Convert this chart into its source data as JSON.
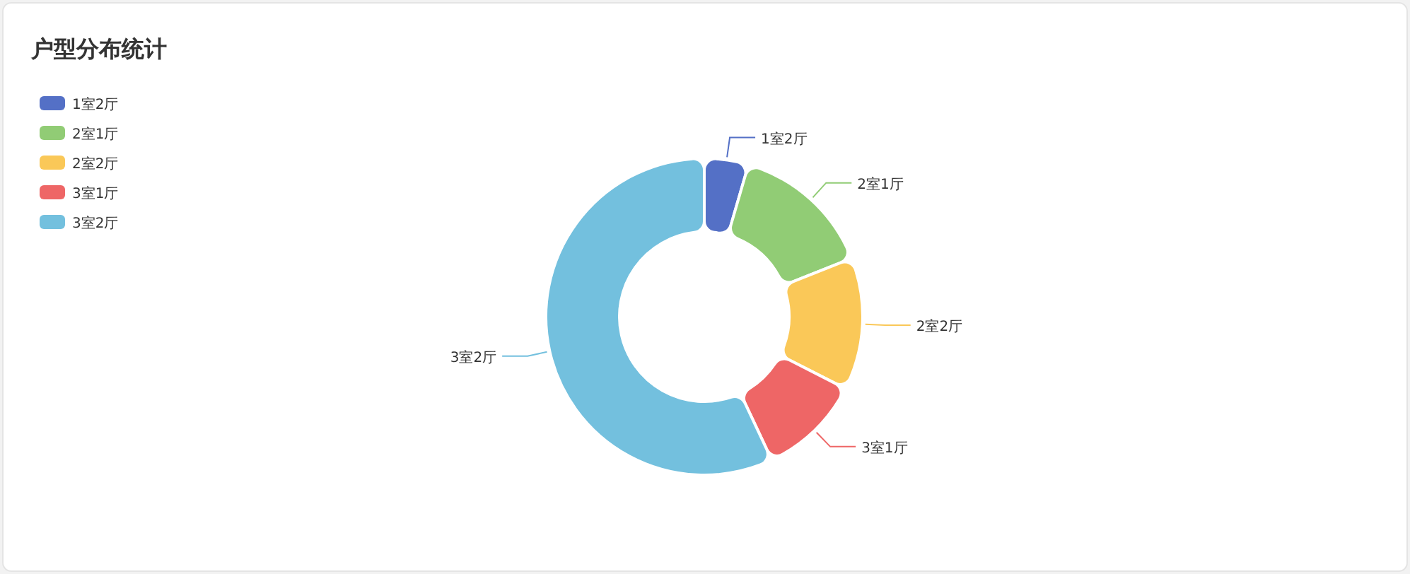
{
  "chart_data": {
    "type": "donut",
    "title": "户型分布统计",
    "categories": [
      "1室2厅",
      "2室1厅",
      "2室2厅",
      "3室1厅",
      "3室2厅"
    ],
    "values": [
      4.5,
      14.5,
      13.5,
      10.5,
      57
    ],
    "colors": [
      "#5470c6",
      "#91cc75",
      "#fac858",
      "#ee6666",
      "#73c0de"
    ],
    "legend": "top left"
  }
}
